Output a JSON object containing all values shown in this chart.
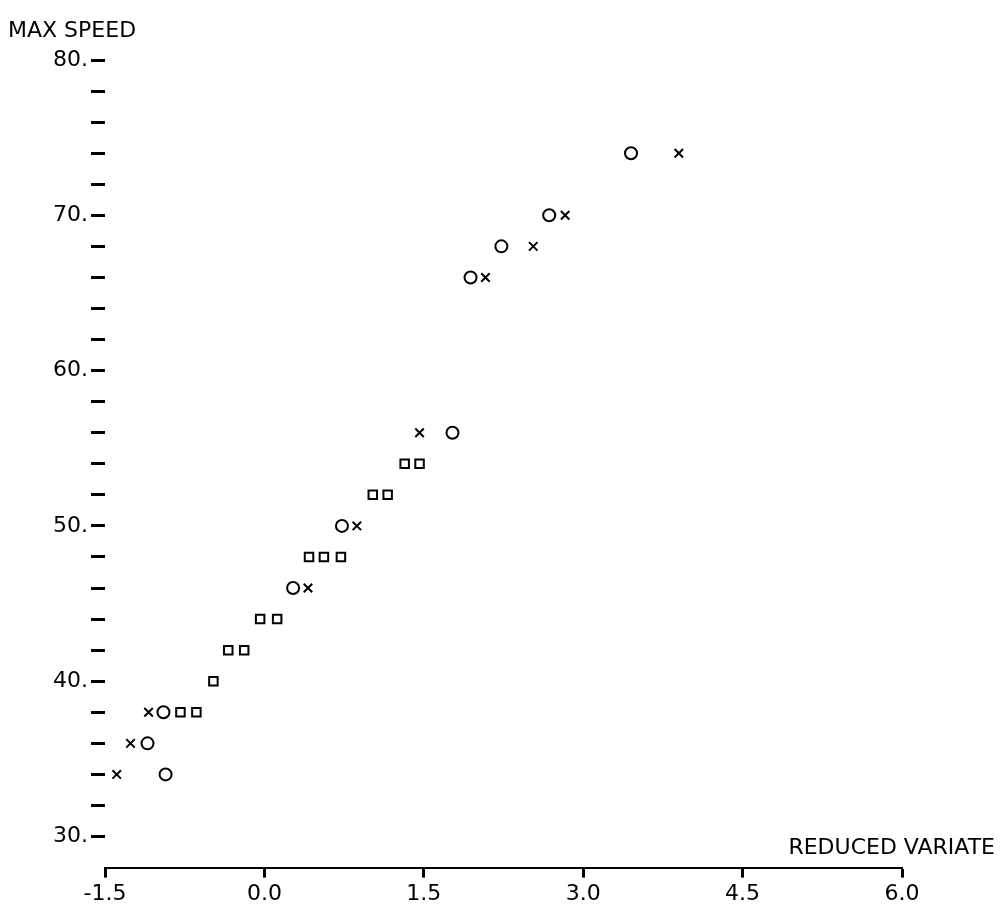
{
  "chart_data": {
    "type": "scatter",
    "xlabel": "REDUCED VARIATE",
    "ylabel": "MAX SPEED",
    "series": [
      {
        "color": "#000000",
        "marker": "circle",
        "x": [
          3.45,
          2.68,
          2.23,
          1.94,
          1.77,
          0.73,
          0.27,
          -0.95,
          -1.1,
          -0.93
        ],
        "values": [
          74,
          70,
          68,
          66,
          56,
          50,
          46,
          38,
          36,
          34
        ]
      },
      {
        "color": "#000000",
        "marker": "cross",
        "x": [
          3.9,
          2.83,
          2.53,
          2.08,
          1.46,
          0.87,
          0.41,
          -1.09,
          -1.26,
          -1.39
        ],
        "values": [
          74,
          70,
          68,
          66,
          56,
          50,
          46,
          38,
          36,
          34
        ]
      },
      {
        "color": "#000000",
        "marker": "square",
        "x": [
          1.32,
          1.46,
          1.02,
          1.16,
          0.42,
          0.56,
          0.72,
          -0.04,
          0.12,
          -0.34,
          -0.19,
          -0.48,
          -0.79,
          -0.64
        ],
        "values": [
          54,
          54,
          52,
          52,
          48,
          48,
          48,
          44,
          44,
          42,
          42,
          40,
          38,
          38
        ]
      }
    ],
    "grid": false,
    "legend": false,
    "xlim": [
      -1.5,
      6.0
    ],
    "xticks": [
      {
        "value": -1.5,
        "label": "-1.5"
      },
      {
        "value": 0,
        "label": "0.0"
      },
      {
        "value": 1.5,
        "label": "1.5"
      },
      {
        "value": 3,
        "label": "3.0"
      },
      {
        "value": 4.5,
        "label": "4.5"
      },
      {
        "value": 6,
        "label": "6.0"
      }
    ],
    "ylim": [
      28,
      80
    ],
    "yticks": [
      {
        "value": 30,
        "label": "30."
      },
      {
        "value": 32,
        "label": null
      },
      {
        "value": 34,
        "label": null
      },
      {
        "value": 36,
        "label": null
      },
      {
        "value": 38,
        "label": null
      },
      {
        "value": 40,
        "label": "40."
      },
      {
        "value": 42,
        "label": null
      },
      {
        "value": 44,
        "label": null
      },
      {
        "value": 46,
        "label": null
      },
      {
        "value": 48,
        "label": null
      },
      {
        "value": 50,
        "label": "50."
      },
      {
        "value": 52,
        "label": null
      },
      {
        "value": 54,
        "label": null
      },
      {
        "value": 56,
        "label": null
      },
      {
        "value": 58,
        "label": null
      },
      {
        "value": 60,
        "label": "60."
      },
      {
        "value": 62,
        "label": null
      },
      {
        "value": 64,
        "label": null
      },
      {
        "value": 66,
        "label": null
      },
      {
        "value": 68,
        "label": null
      },
      {
        "value": 70,
        "label": "70."
      },
      {
        "value": 72,
        "label": null
      },
      {
        "value": 74,
        "label": null
      },
      {
        "value": 76,
        "label": null
      },
      {
        "value": 78,
        "label": null
      },
      {
        "value": 80,
        "label": "80."
      }
    ]
  }
}
